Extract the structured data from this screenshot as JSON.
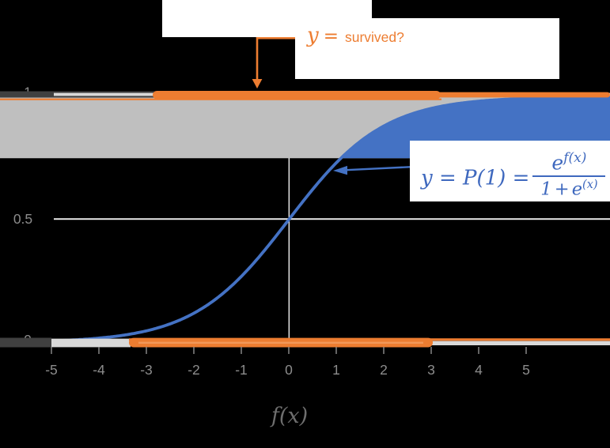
{
  "colors": {
    "orange": "#ED7D31",
    "blue": "#4472C4",
    "band_gray": "#BFBFBF",
    "light_gray": "#D9D9D9",
    "dark_gray": "#404040",
    "axis_line": "#E6E6E6",
    "tick_label_gray": "#8C8C8C",
    "axis_title_gray": "#6E6E6E"
  },
  "annotations": {
    "response_label": {
      "lhs": "y",
      "eq": "=",
      "rhs": "survived?"
    },
    "formula": {
      "lhs": "y = P(1) =",
      "numerator_base": "e",
      "numerator_sup": "f(x)",
      "denominator_base": "1 + e",
      "denominator_sup": "(x)"
    }
  },
  "chart_data": {
    "type": "line",
    "description": "Logistic (sigmoid) curve y = e^f(x)/(1+e^f(x)); data points plotted as orange/gray strips at y=1 (survived) and y=0 (did not survive)",
    "xlabel": "f(x)",
    "x_ticks": [
      "-5",
      "-4",
      "-3",
      "-2",
      "-1",
      "0",
      "1",
      "2",
      "3",
      "4",
      "5"
    ],
    "x_tick_values": [
      -5,
      -4,
      -3,
      -2,
      -1,
      0,
      1,
      2,
      3,
      4,
      5
    ],
    "y_ticks": [
      "0",
      "0.5",
      "1"
    ],
    "y_tick_values": [
      0,
      0.5,
      1
    ],
    "ylim": [
      0,
      1
    ],
    "grid": "only y=0.5 and y=1 gridlines, vertical line at x=0",
    "curve": {
      "name": "logistic curve",
      "color": "#4472C4",
      "fill_above": 0.75
    },
    "band": {
      "y_from": 0.75,
      "y_to": 1.0,
      "color": "#BFBFBF"
    },
    "rug_top": {
      "y": 1,
      "orange_x_from": -2.87,
      "orange_x_to": 6.77,
      "dark_x_from": -6.1,
      "dark_x_to": -2.8
    },
    "rug_bottom": {
      "y": 0,
      "orange_x_from": -3.37,
      "orange_x_to": 3.03,
      "gray_x_from": -5,
      "gray_x_to": -3.37,
      "dark_x_from": -6.1,
      "dark_x_to": -5
    }
  }
}
